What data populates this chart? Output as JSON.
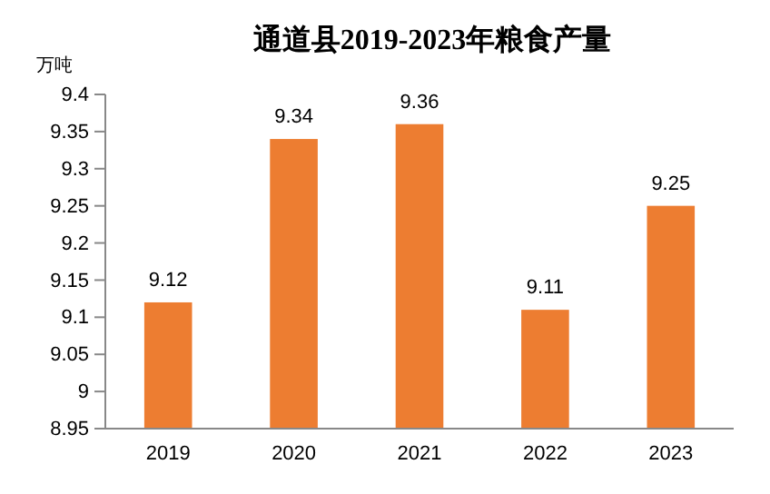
{
  "chart_data": {
    "type": "bar",
    "title": "通道县2019-2023年粮食产量",
    "ylabel": "万吨",
    "categories": [
      "2019",
      "2020",
      "2021",
      "2022",
      "2023"
    ],
    "values": [
      9.12,
      9.34,
      9.36,
      9.11,
      9.25
    ],
    "color": "#ed7d31",
    "ylim": [
      8.95,
      9.4
    ],
    "yticks": [
      8.95,
      9,
      9.05,
      9.1,
      9.15,
      9.2,
      9.25,
      9.3,
      9.35,
      9.4
    ],
    "data_labels": true,
    "grid": false
  }
}
